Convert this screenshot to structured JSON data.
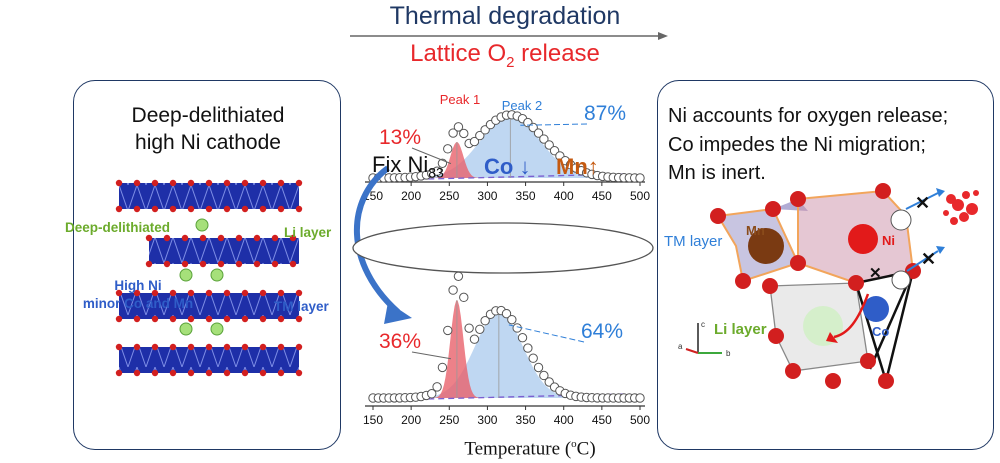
{
  "header": {
    "title": "Thermal degradation",
    "subtitle_main": "Lattice O",
    "subtitle_sub": "2",
    "subtitle_end": " release"
  },
  "left_panel": {
    "title_line1": "Deep-delithiated",
    "title_line2": "high Ni cathode",
    "label_deep": "Deep-delithiated",
    "label_li": "Li layer",
    "label_highni_1": "High Ni",
    "label_highni_2": "minor Co and Mn",
    "label_tm": "TM layer"
  },
  "center": {
    "peak1_label": "Peak 1",
    "peak2_label": "Peak 2",
    "middle_fix_main": "Fix Ni",
    "middle_fix_sub": "83",
    "middle_co": "Co",
    "middle_co_arrow": "↓",
    "middle_mn": "Mn",
    "middle_mn_arrow": "↑",
    "x_axis_title_main": "Temperature (",
    "x_axis_title_sup": "o",
    "x_axis_title_end": "C)",
    "x_ticks": [
      "150",
      "200",
      "250",
      "300",
      "350",
      "400",
      "450",
      "500"
    ]
  },
  "chart_data": [
    {
      "type": "area",
      "title": "Lattice O2 release (top, high Co)",
      "xlabel": "Temperature (oC)",
      "xlim": [
        150,
        500
      ],
      "peak1": {
        "center": 260,
        "share_label": "13%",
        "color": "#e8282b"
      },
      "peak2": {
        "center": 330,
        "share_label": "87%",
        "color": "#2f7fd8"
      }
    },
    {
      "type": "area",
      "title": "Lattice O2 release (bottom, high Mn)",
      "xlabel": "Temperature (oC)",
      "xlim": [
        150,
        500
      ],
      "peak1": {
        "center": 260,
        "share_label": "36%",
        "color": "#e8282b"
      },
      "peak2": {
        "center": 315,
        "share_label": "64%",
        "color": "#2f7fd8"
      }
    }
  ],
  "right_panel": {
    "line1": "Ni accounts for oxygen release;",
    "line2": "Co impedes the Ni migration;",
    "line3": "Mn is inert.",
    "label_mn": "Mn",
    "label_ni": "Ni",
    "label_co": "Co",
    "label_tm": "TM layer",
    "label_li": "Li layer",
    "axis_c": "c",
    "axis_a": "a",
    "axis_b": "b"
  },
  "colors": {
    "navy": "#1f3864",
    "red": "#e8282b",
    "blue": "#2f7fd8",
    "green": "#6cab2c",
    "brown": "#8a4b1a",
    "orange": "#c55a11"
  }
}
